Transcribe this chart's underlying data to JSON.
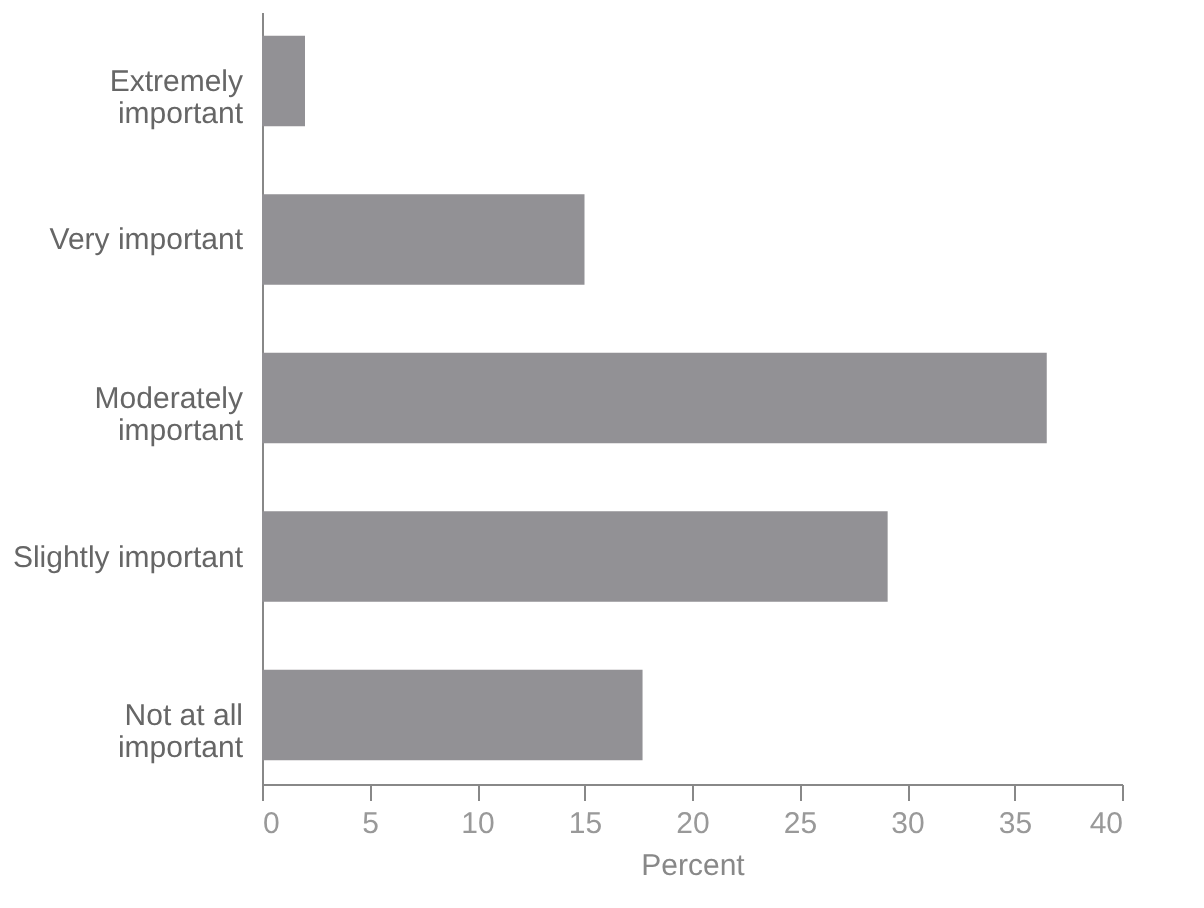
{
  "chart_data": {
    "type": "bar",
    "orientation": "horizontal",
    "xlabel": "Percent",
    "categories": [
      "Extremely\nimportant",
      "Very important",
      "Moderately\nimportant",
      "Slightly important",
      "Not at all\nimportant"
    ],
    "values": [
      2.0,
      15.0,
      36.5,
      29.1,
      17.7
    ],
    "color": "#929195",
    "xlim": [
      0,
      40
    ],
    "xticks": [
      0,
      5,
      10,
      15,
      20,
      25,
      30,
      35,
      40
    ]
  }
}
